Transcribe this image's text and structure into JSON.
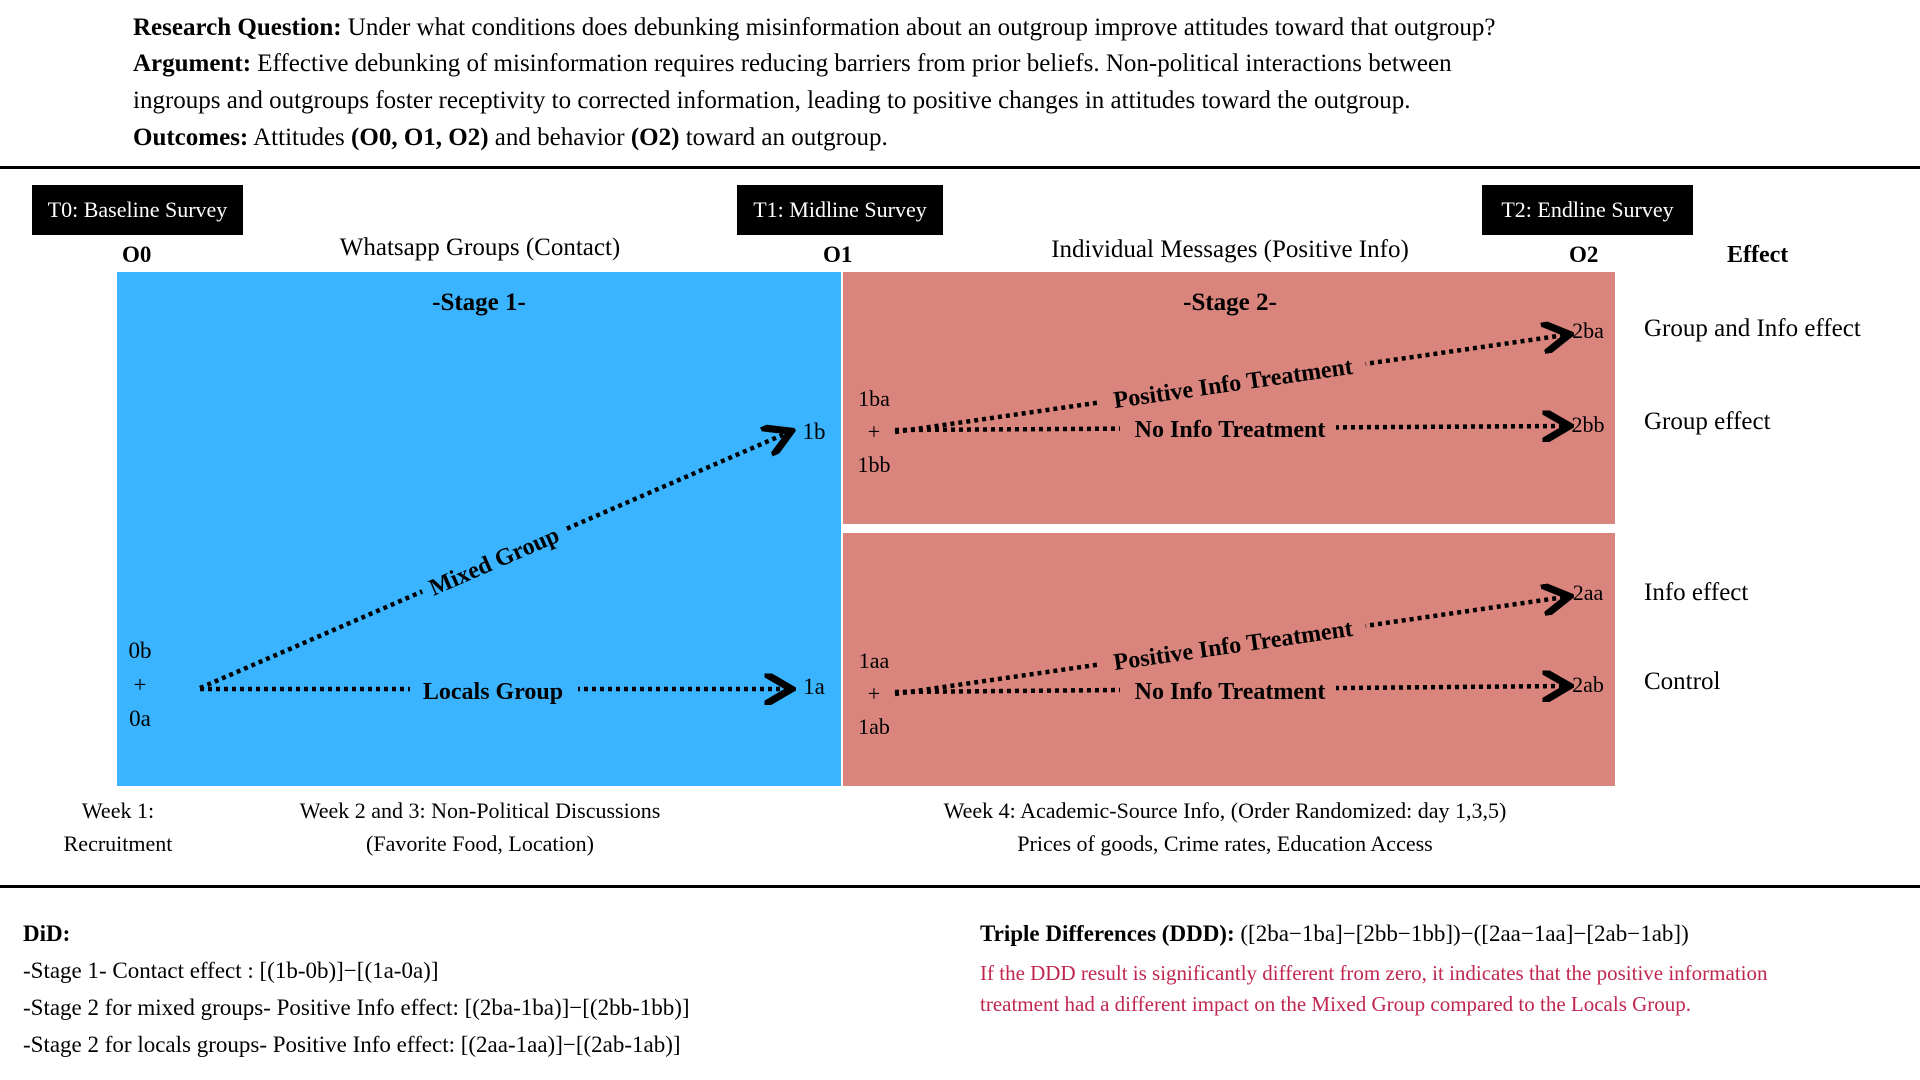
{
  "header": {
    "rq_label": "Research Question:",
    "rq_text": " Under what conditions does debunking misinformation about an outgroup improve attitudes toward that outgroup?",
    "arg_label": "Argument:",
    "arg_text1": " Effective debunking of misinformation requires reducing barriers from prior beliefs. Non-political interactions between",
    "arg_text2": "ingroups and outgroups foster receptivity to corrected information, leading to positive changes in attitudes toward the outgroup.",
    "out_label": "Outcomes:",
    "out_t1": " Attitudes ",
    "out_b1": "(O0, O1, O2)",
    "out_t2": " and behavior ",
    "out_b2": "(O2)",
    "out_t3": " toward an outgroup."
  },
  "surveys": {
    "t0": "T0: Baseline Survey",
    "t1": "T1: Midline Survey",
    "t2": "T2: Endline Survey"
  },
  "observations": {
    "o0": "O0",
    "o1": "O1",
    "o2": "O2"
  },
  "phases": {
    "contact": "Whatsapp Groups (Contact)",
    "info": "Individual Messages (Positive Info)"
  },
  "effect_header": "Effect",
  "stage1": {
    "title": "-Stage 1-",
    "start_top": "0b",
    "start_plus": "+",
    "start_bottom": "0a",
    "end_mixed": "1b",
    "end_locals": "1a",
    "arrow_mixed": "Mixed Group",
    "arrow_locals": "Locals Group",
    "color": "#3ab4ff"
  },
  "stage2": {
    "title": "-Stage 2-",
    "color": "#d9857d",
    "top": {
      "start_top": "1ba",
      "start_plus": "+",
      "start_bottom": "1bb",
      "end_pos": "2ba",
      "end_none": "2bb",
      "arrow_pos": "Positive Info Treatment",
      "arrow_none": "No Info Treatment"
    },
    "bottom": {
      "start_top": "1aa",
      "start_plus": "+",
      "start_bottom": "1ab",
      "end_pos": "2aa",
      "end_none": "2ab",
      "arrow_pos": "Positive Info Treatment",
      "arrow_none": "No Info Treatment"
    }
  },
  "effects": {
    "group_info": "Group and Info effect",
    "group": "Group effect",
    "info": "Info effect",
    "control": "Control"
  },
  "captions": {
    "week1_a": "Week 1:",
    "week1_b": "Recruitment",
    "week23_a": "Week 2 and 3: Non-Political Discussions",
    "week23_b": "(Favorite Food, Location)",
    "week4_a": "Week 4: Academic-Source Info, (Order Randomized: day 1,3,5)",
    "week4_b": "Prices of goods, Crime rates, Education Access"
  },
  "did": {
    "title": "DiD:",
    "line1": "-Stage 1- Contact effect : [(1b-0b)]−[(1a-0a)]",
    "line2": "-Stage 2 for mixed groups- Positive Info effect: [(2ba-1ba)]−[(2bb-1bb)]",
    "line3": "-Stage 2 for locals groups- Positive Info effect:  [(2aa-1aa)]−[(2ab-1ab)]"
  },
  "ddd": {
    "label": "Triple Differences (DDD):",
    "formula": " ([2ba−1ba]−[2bb−1bb])−([2aa−1aa]−[2ab−1ab])",
    "note1": "If the DDD result is significantly different from zero, it indicates that the positive information",
    "note2": "treatment had a different impact on the Mixed Group compared to the Locals Group.",
    "note_color": "#c0264f"
  }
}
